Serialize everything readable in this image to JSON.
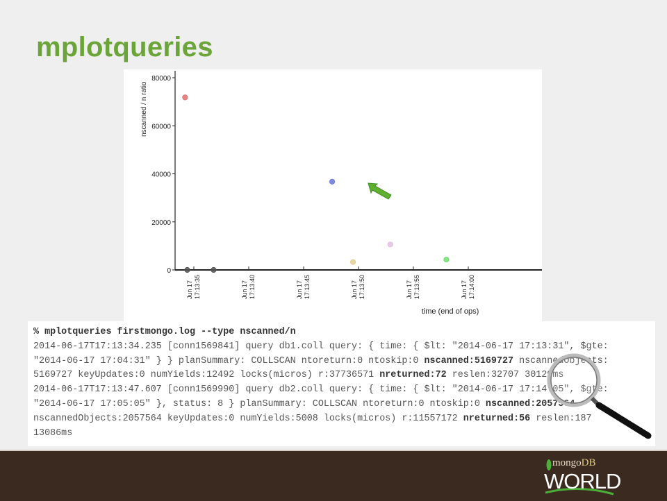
{
  "slide": {
    "title": "mplotqueries"
  },
  "chart_data": {
    "type": "scatter",
    "ylabel": "nscanned / n ratio",
    "xlabel": "time (end of ops)",
    "ylim": [
      0,
      80000
    ],
    "y_ticks": [
      "0",
      "20000",
      "40000",
      "60000",
      "80000"
    ],
    "xlim_seconds_of_17_13": [
      31,
      61
    ],
    "x_ticks": [
      {
        "line1": "Jun 17",
        "line2": "17:13:35",
        "t": 35
      },
      {
        "line1": "Jun 17",
        "line2": "17:13:40",
        "t": 40
      },
      {
        "line1": "Jun 17",
        "line2": "17:13:45",
        "t": 45
      },
      {
        "line1": "Jun 17",
        "line2": "17:13:50",
        "t": 50
      },
      {
        "line1": "Jun 17",
        "line2": "17:13:55",
        "t": 55
      },
      {
        "line1": "Jun 17",
        "line2": "17:14:00",
        "t": 60
      }
    ],
    "points": [
      {
        "time": "17:13:34.2",
        "t": 34.2,
        "value": 71800,
        "color": "#e07070"
      },
      {
        "time": "17:13:34.4",
        "t": 34.4,
        "value": 0,
        "color": "#555555"
      },
      {
        "time": "17:13:36.8",
        "t": 36.8,
        "value": 0,
        "color": "#555555"
      },
      {
        "time": "17:13:47.6",
        "t": 47.6,
        "value": 36740,
        "color": "#6a78d8"
      },
      {
        "time": "17:13:49.5",
        "t": 49.5,
        "value": 3300,
        "color": "#e0d090"
      },
      {
        "time": "17:13:52.9",
        "t": 52.9,
        "value": 10600,
        "color": "#e0c0e0"
      },
      {
        "time": "17:13:58.0",
        "t": 58.0,
        "value": 4300,
        "color": "#70e070"
      }
    ],
    "grid": false,
    "annotation": "green-arrow pointing at blue point"
  },
  "terminal": {
    "lines": [
      [
        {
          "text": "% mplotqueries firstmongo.log --type nscanned/n",
          "bold": true
        }
      ],
      [
        {
          "text": "2014-06-17T17:13:34.235 [conn1569841] query db1.coll query: { time: { $lt: \"2014-06-17 17:13:31\", $gte:",
          "bold": false
        }
      ],
      [
        {
          "text": "\"2014-06-17 17:04:31\" } } planSummary: COLLSCAN ntoreturn:0 ntoskip:0 ",
          "bold": false
        },
        {
          "text": "nscanned:5169727",
          "bold": true
        },
        {
          "text": " nscannedObjects:",
          "bold": false
        }
      ],
      [
        {
          "text": "5169727 keyUpdates:0 numYields:12492 locks(micros) r:37736571 ",
          "bold": false
        },
        {
          "text": "nreturned:72",
          "bold": true
        },
        {
          "text": " reslen:32707 30129ms",
          "bold": false
        }
      ],
      [
        {
          "text": "2014-06-17T17:13:47.607 [conn1569990] query db2.coll query: { time: { $lt: \"2014-06-17 17:14:05\", $gte:",
          "bold": false
        }
      ],
      [
        {
          "text": "\"2014-06-17 17:05:05\" }, status: 8 } planSummary: COLLSCAN ntoreturn:0 ntoskip:0 ",
          "bold": false
        },
        {
          "text": "nscanned:2057564",
          "bold": true
        }
      ],
      [
        {
          "text": "nscannedObjects:2057564 keyUpdates:0 numYields:5008 locks(micros) r:11557172 ",
          "bold": false
        },
        {
          "text": "nreturned:56",
          "bold": true
        },
        {
          "text": " reslen:187",
          "bold": false
        }
      ],
      [
        {
          "text": "13086ms",
          "bold": false
        }
      ]
    ]
  },
  "footer": {
    "logo_mongo": "mongo",
    "logo_db": "DB",
    "logo_world": "WORLD",
    "background": "#3a2a1f"
  },
  "colors": {
    "title": "#6ba53a",
    "arrow": "#5fb030"
  }
}
